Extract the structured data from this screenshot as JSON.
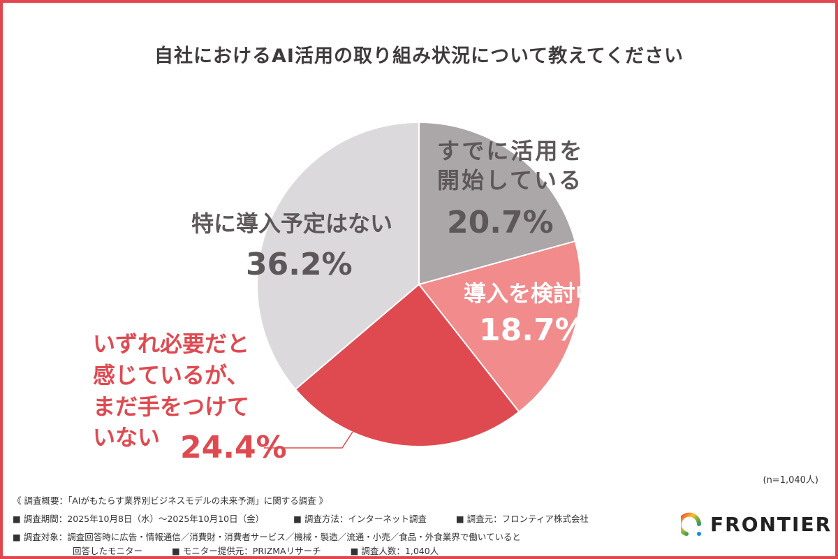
{
  "chart_data": {
    "type": "pie",
    "title": "自社におけるAI活用の取り組み状況について教えてください",
    "slices": [
      {
        "label": "すでに活用を開始している",
        "value": 20.7,
        "display": "20.7%",
        "color": "#aba7a9"
      },
      {
        "label": "導入を検討中である",
        "value": 18.7,
        "display": "18.7%",
        "color": "#f18b8c"
      },
      {
        "label": "いずれ必要だと感じているが、まだ手をつけていない",
        "value": 24.4,
        "display": "24.4%",
        "color": "#df4a51"
      },
      {
        "label": "特に導入予定はない",
        "value": 36.2,
        "display": "36.2%",
        "color": "#dcd9dc"
      }
    ],
    "note": "(n=1,040人)"
  },
  "footer": {
    "heading": "《 調査概要：「AIがもたらす業界別ビジネスモデルの未来予測」に関する調査 》",
    "line1": [
      "■ 調査期間：2025年10月8日（水）〜2025年10月10日（金）",
      "■ 調査方法：インターネット調査",
      "■ 調査元：フロンティア株式会社"
    ],
    "line2": "■ 調査対象：調査回答時に広告・情報通信／消費財・消費者サービス／機械・製造／流通・小売／食品・外食業界で働いていると",
    "line3": [
      "回答したモニター",
      "■ モニター提供元：PRIZMAリサーチ",
      "■ 調査人数：1,040人"
    ]
  },
  "logo": {
    "text": "FRONTIER"
  }
}
